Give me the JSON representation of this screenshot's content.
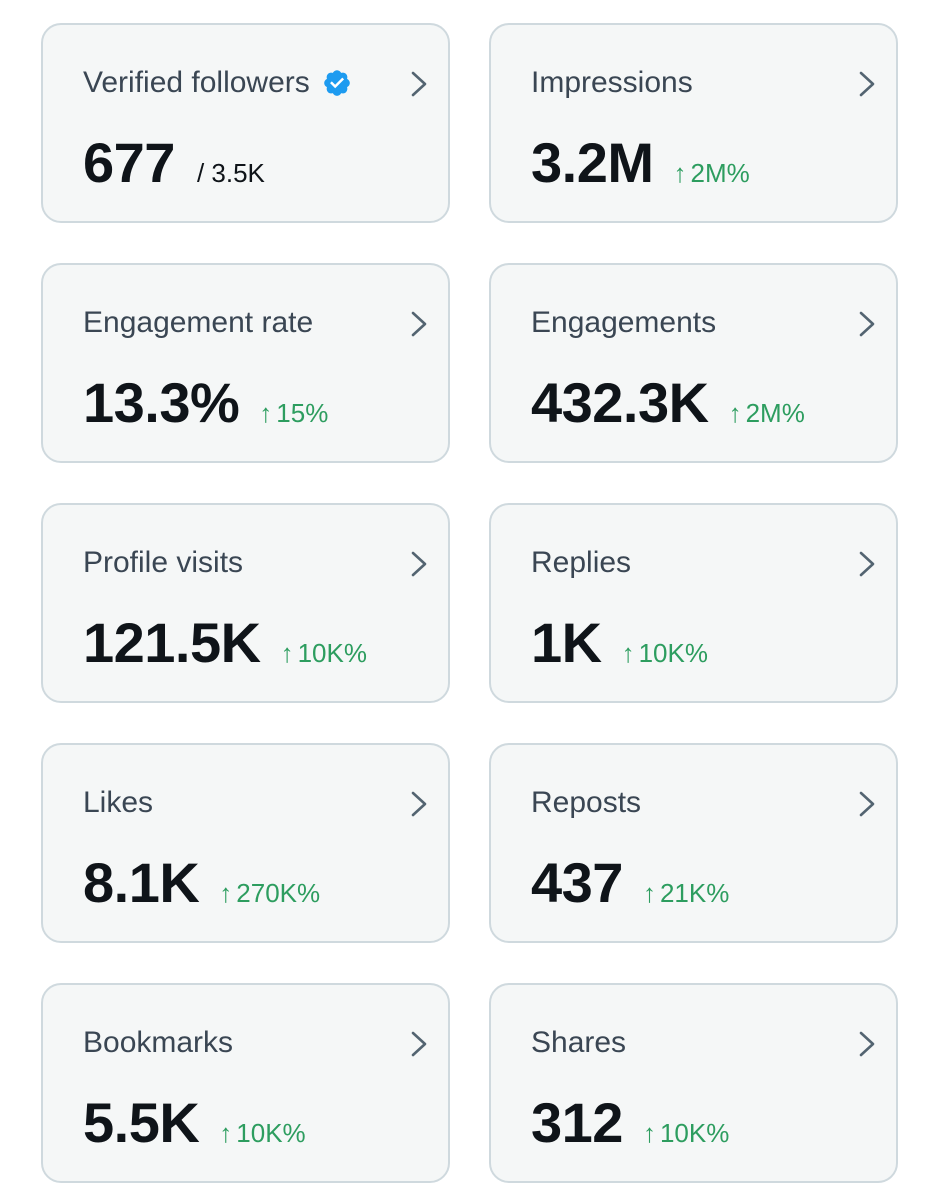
{
  "cards": [
    {
      "title": "Verified followers",
      "value": "677",
      "suffix": "/ 3.5K",
      "change": ""
    },
    {
      "title": "Impressions",
      "value": "3.2M",
      "suffix": "",
      "change": "2M%"
    },
    {
      "title": "Engagement rate",
      "value": "13.3%",
      "suffix": "",
      "change": "15%"
    },
    {
      "title": "Engagements",
      "value": "432.3K",
      "suffix": "",
      "change": "2M%"
    },
    {
      "title": "Profile visits",
      "value": "121.5K",
      "suffix": "",
      "change": "10K%"
    },
    {
      "title": "Replies",
      "value": "1K",
      "suffix": "",
      "change": "10K%"
    },
    {
      "title": "Likes",
      "value": "8.1K",
      "suffix": "",
      "change": "270K%"
    },
    {
      "title": "Reposts",
      "value": "437",
      "suffix": "",
      "change": "21K%"
    },
    {
      "title": "Bookmarks",
      "value": "5.5K",
      "suffix": "",
      "change": "10K%"
    },
    {
      "title": "Shares",
      "value": "312",
      "suffix": "",
      "change": "10K%"
    }
  ],
  "change_arrow": "↑",
  "colors": {
    "card_background": "#f5f7f7",
    "card_border": "#cfd9de",
    "title_text": "#3a4653",
    "value_text": "#0f1419",
    "positive_change": "#2d9d5f",
    "verified_badge": "#1d9bf0",
    "chevron": "#536471"
  },
  "icons": {
    "verified": "verified-badge-icon",
    "card_link": "chevron-right-icon"
  }
}
